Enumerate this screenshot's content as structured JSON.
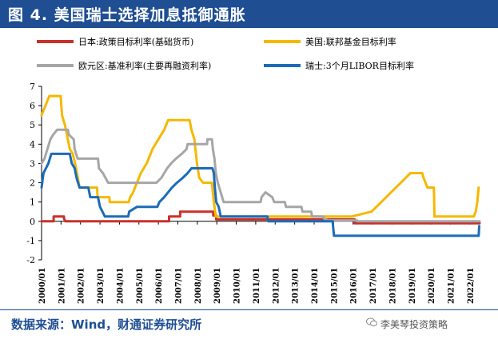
{
  "figure": {
    "title": "图 4.  美国瑞士选择加息抵御通胀",
    "source": "数据来源：Wind，财通证券研究所",
    "watermark": "李美琴投资策略",
    "watermark_icon": "wechat-icon"
  },
  "chart_data": {
    "type": "line",
    "xlabel": "",
    "ylabel": "",
    "ylim": [
      -2,
      7
    ],
    "yticks": [
      -2,
      -1,
      0,
      1,
      2,
      3,
      4,
      5,
      6,
      7
    ],
    "xlim": [
      2000.0,
      2022.5
    ],
    "xticks": [
      "2000/01",
      "2001/01",
      "2002/01",
      "2003/01",
      "2004/01",
      "2005/01",
      "2006/01",
      "2007/01",
      "2008/01",
      "2009/01",
      "2010/01",
      "2011/01",
      "2012/01",
      "2013/01",
      "2014/01",
      "2015/01",
      "2016/01",
      "2017/01",
      "2018/01",
      "2019/01",
      "2020/01",
      "2021/01",
      "2022/01"
    ],
    "grid": false,
    "legend_position": "top",
    "series": [
      {
        "name": "日本:政策目标利率(基础货币)",
        "color": "#c8312b",
        "points": [
          [
            2000.0,
            0.0
          ],
          [
            2000.62,
            0.0
          ],
          [
            2000.62,
            0.25
          ],
          [
            2001.15,
            0.25
          ],
          [
            2001.15,
            0.15
          ],
          [
            2001.22,
            0.0
          ],
          [
            2006.55,
            0.0
          ],
          [
            2006.55,
            0.25
          ],
          [
            2007.12,
            0.25
          ],
          [
            2007.12,
            0.5
          ],
          [
            2008.82,
            0.5
          ],
          [
            2008.82,
            0.3
          ],
          [
            2008.97,
            0.3
          ],
          [
            2008.97,
            0.1
          ],
          [
            2016.08,
            0.1
          ],
          [
            2016.08,
            -0.1
          ],
          [
            2022.5,
            -0.1
          ]
        ]
      },
      {
        "name": "美国:联邦基金目标利率",
        "color": "#f5b800",
        "points": [
          [
            2000.0,
            5.5
          ],
          [
            2000.1,
            5.75
          ],
          [
            2000.2,
            6.0
          ],
          [
            2000.4,
            6.5
          ],
          [
            2000.98,
            6.5
          ],
          [
            2001.05,
            5.5
          ],
          [
            2001.2,
            5.0
          ],
          [
            2001.3,
            4.5
          ],
          [
            2001.45,
            3.75
          ],
          [
            2001.6,
            3.5
          ],
          [
            2001.72,
            3.0
          ],
          [
            2001.82,
            2.5
          ],
          [
            2001.95,
            1.75
          ],
          [
            2002.85,
            1.75
          ],
          [
            2002.88,
            1.25
          ],
          [
            2003.48,
            1.25
          ],
          [
            2003.5,
            1.0
          ],
          [
            2004.48,
            1.0
          ],
          [
            2004.55,
            1.25
          ],
          [
            2004.7,
            1.5
          ],
          [
            2004.9,
            2.0
          ],
          [
            2005.1,
            2.5
          ],
          [
            2005.4,
            3.0
          ],
          [
            2005.7,
            3.75
          ],
          [
            2006.0,
            4.25
          ],
          [
            2006.3,
            4.75
          ],
          [
            2006.5,
            5.25
          ],
          [
            2007.6,
            5.25
          ],
          [
            2007.7,
            4.75
          ],
          [
            2007.85,
            4.25
          ],
          [
            2007.98,
            3.0
          ],
          [
            2008.1,
            2.25
          ],
          [
            2008.3,
            2.0
          ],
          [
            2008.75,
            2.0
          ],
          [
            2008.8,
            1.5
          ],
          [
            2008.85,
            1.0
          ],
          [
            2008.95,
            0.25
          ],
          [
            2015.92,
            0.25
          ],
          [
            2016.95,
            0.5
          ],
          [
            2017.2,
            0.75
          ],
          [
            2017.45,
            1.0
          ],
          [
            2017.95,
            1.5
          ],
          [
            2018.2,
            1.75
          ],
          [
            2018.45,
            2.0
          ],
          [
            2018.7,
            2.25
          ],
          [
            2018.95,
            2.5
          ],
          [
            2019.55,
            2.5
          ],
          [
            2019.62,
            2.25
          ],
          [
            2019.72,
            2.0
          ],
          [
            2019.82,
            1.75
          ],
          [
            2020.15,
            1.75
          ],
          [
            2020.18,
            0.25
          ],
          [
            2022.2,
            0.25
          ],
          [
            2022.3,
            0.5
          ],
          [
            2022.38,
            1.0
          ],
          [
            2022.45,
            1.75
          ]
        ]
      },
      {
        "name": "欧元区:基准利率(主要再融资利率)",
        "color": "#a6a6a6",
        "points": [
          [
            2000.0,
            3.0
          ],
          [
            2000.15,
            3.25
          ],
          [
            2000.3,
            3.75
          ],
          [
            2000.45,
            4.25
          ],
          [
            2000.6,
            4.5
          ],
          [
            2000.8,
            4.75
          ],
          [
            2001.35,
            4.75
          ],
          [
            2001.4,
            4.5
          ],
          [
            2001.65,
            4.25
          ],
          [
            2001.7,
            3.75
          ],
          [
            2001.85,
            3.25
          ],
          [
            2002.9,
            3.25
          ],
          [
            2002.95,
            2.75
          ],
          [
            2003.15,
            2.5
          ],
          [
            2003.42,
            2.0
          ],
          [
            2005.9,
            2.0
          ],
          [
            2006.15,
            2.25
          ],
          [
            2006.45,
            2.75
          ],
          [
            2006.65,
            3.0
          ],
          [
            2006.9,
            3.25
          ],
          [
            2007.2,
            3.5
          ],
          [
            2007.45,
            3.75
          ],
          [
            2007.5,
            4.0
          ],
          [
            2008.5,
            4.0
          ],
          [
            2008.52,
            4.25
          ],
          [
            2008.75,
            4.25
          ],
          [
            2008.8,
            3.75
          ],
          [
            2008.88,
            3.25
          ],
          [
            2008.95,
            2.5
          ],
          [
            2009.05,
            2.0
          ],
          [
            2009.2,
            1.5
          ],
          [
            2009.35,
            1.0
          ],
          [
            2011.25,
            1.0
          ],
          [
            2011.3,
            1.25
          ],
          [
            2011.5,
            1.5
          ],
          [
            2011.85,
            1.25
          ],
          [
            2011.95,
            1.0
          ],
          [
            2012.5,
            1.0
          ],
          [
            2012.55,
            0.75
          ],
          [
            2013.35,
            0.75
          ],
          [
            2013.4,
            0.5
          ],
          [
            2013.85,
            0.5
          ],
          [
            2013.9,
            0.25
          ],
          [
            2014.45,
            0.25
          ],
          [
            2014.5,
            0.15
          ],
          [
            2014.7,
            0.05
          ],
          [
            2016.2,
            0.05
          ],
          [
            2016.22,
            0.0
          ],
          [
            2022.5,
            0.0
          ]
        ]
      },
      {
        "name": "瑞士:3个月LIBOR目标利率",
        "color": "#1c6bb8",
        "points": [
          [
            2000.0,
            1.75
          ],
          [
            2000.1,
            2.5
          ],
          [
            2000.35,
            3.0
          ],
          [
            2000.5,
            3.5
          ],
          [
            2001.45,
            3.5
          ],
          [
            2001.55,
            3.0
          ],
          [
            2001.7,
            2.75
          ],
          [
            2001.8,
            2.25
          ],
          [
            2001.95,
            1.75
          ],
          [
            2002.4,
            1.75
          ],
          [
            2002.5,
            1.25
          ],
          [
            2002.9,
            1.25
          ],
          [
            2003.0,
            0.75
          ],
          [
            2003.25,
            0.25
          ],
          [
            2004.45,
            0.25
          ],
          [
            2004.5,
            0.5
          ],
          [
            2004.9,
            0.75
          ],
          [
            2005.95,
            0.75
          ],
          [
            2006.05,
            1.0
          ],
          [
            2006.3,
            1.25
          ],
          [
            2006.5,
            1.5
          ],
          [
            2006.7,
            1.75
          ],
          [
            2006.95,
            2.0
          ],
          [
            2007.25,
            2.25
          ],
          [
            2007.5,
            2.5
          ],
          [
            2007.7,
            2.75
          ],
          [
            2008.78,
            2.75
          ],
          [
            2008.85,
            2.5
          ],
          [
            2008.9,
            1.75
          ],
          [
            2008.97,
            1.0
          ],
          [
            2009.1,
            0.75
          ],
          [
            2009.2,
            0.25
          ],
          [
            2011.6,
            0.25
          ],
          [
            2011.65,
            0.0
          ],
          [
            2014.95,
            0.0
          ],
          [
            2015.02,
            -0.75
          ],
          [
            2022.45,
            -0.75
          ],
          [
            2022.48,
            -0.25
          ]
        ]
      }
    ]
  }
}
